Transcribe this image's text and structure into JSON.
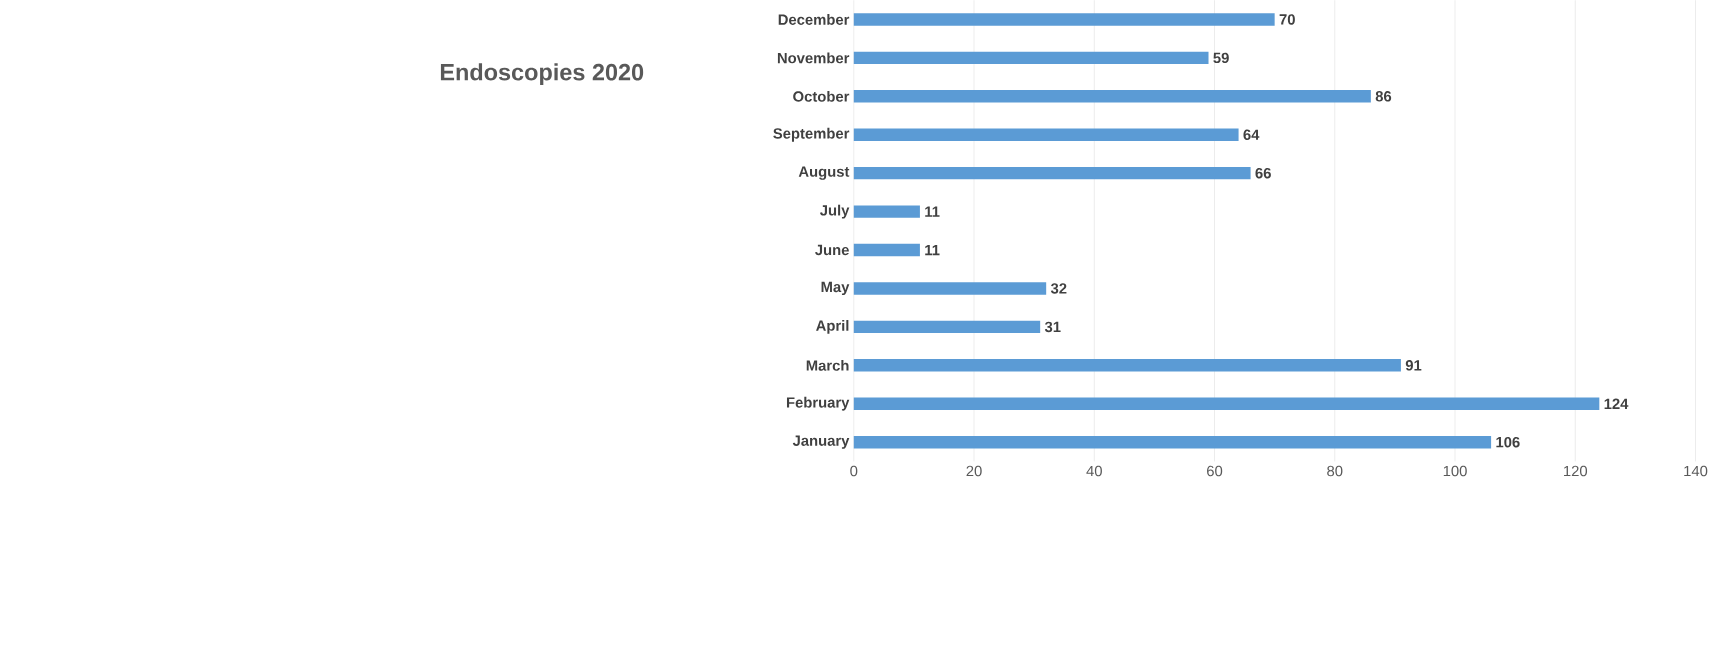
{
  "chart_data": {
    "type": "bar",
    "orientation": "horizontal",
    "title": "Endoscopies 2020",
    "categories": [
      "December",
      "November",
      "October",
      "September",
      "August",
      "July",
      "June",
      "May",
      "April",
      "March",
      "February",
      "January"
    ],
    "values": [
      70,
      59,
      86,
      64,
      66,
      11,
      11,
      32,
      31,
      91,
      124,
      106
    ],
    "color": "#5b9bd5",
    "xlim": [
      0,
      140
    ],
    "xticks": [
      0,
      20,
      40,
      60,
      80,
      100,
      120,
      140
    ],
    "grid": "x",
    "data_labels": true
  }
}
